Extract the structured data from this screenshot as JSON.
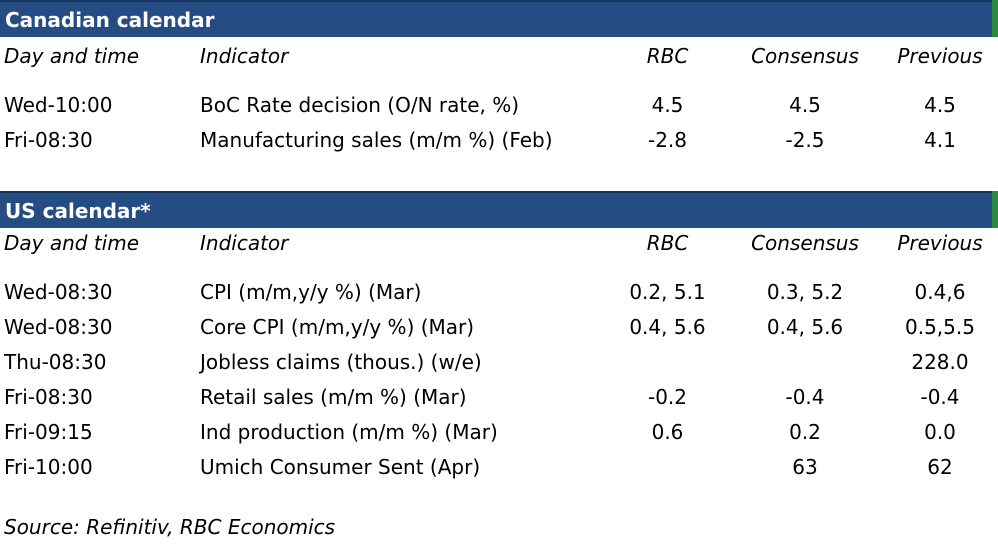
{
  "canadian": {
    "title": "Canadian calendar",
    "headers": {
      "day": "Day and time",
      "indicator": "Indicator",
      "rbc": "RBC",
      "consensus": "Consensus",
      "previous": "Previous"
    },
    "rows": [
      {
        "day": "Wed-10:00",
        "indicator": "BoC Rate decision (O/N rate, %)",
        "rbc": "4.5",
        "consensus": "4.5",
        "previous": "4.5"
      },
      {
        "day": "Fri-08:30",
        "indicator": "Manufacturing sales (m/m %) (Feb)",
        "rbc": "-2.8",
        "consensus": "-2.5",
        "previous": "4.1"
      }
    ]
  },
  "us": {
    "title": "US calendar*",
    "headers": {
      "day": "Day and time",
      "indicator": "Indicator",
      "rbc": "RBC",
      "consensus": "Consensus",
      "previous": "Previous"
    },
    "rows": [
      {
        "day": "Wed-08:30",
        "indicator": "CPI (m/m,y/y %) (Mar)",
        "rbc": "0.2, 5.1",
        "consensus": "0.3, 5.2",
        "previous": "0.4,6"
      },
      {
        "day": "Wed-08:30",
        "indicator": "Core CPI (m/m,y/y %) (Mar)",
        "rbc": "0.4, 5.6",
        "consensus": "0.4, 5.6",
        "previous": "0.5,5.5"
      },
      {
        "day": "Thu-08:30",
        "indicator": "Jobless claims (thous.) (w/e)",
        "rbc": "",
        "consensus": "",
        "previous": "228.0"
      },
      {
        "day": "Fri-08:30",
        "indicator": "Retail sales (m/m %) (Mar)",
        "rbc": "-0.2",
        "consensus": "-0.4",
        "previous": "-0.4"
      },
      {
        "day": "Fri-09:15",
        "indicator": "Ind production (m/m %) (Mar)",
        "rbc": "0.6",
        "consensus": "0.2",
        "previous": "0.0"
      },
      {
        "day": "Fri-10:00",
        "indicator": "Umich Consumer Sent (Apr)",
        "rbc": "",
        "consensus": "63",
        "previous": "62"
      }
    ]
  },
  "source": "Source: Refinitiv,  RBC Economics",
  "colors": {
    "band": "#254c83",
    "accent": "#2b8a3e"
  }
}
